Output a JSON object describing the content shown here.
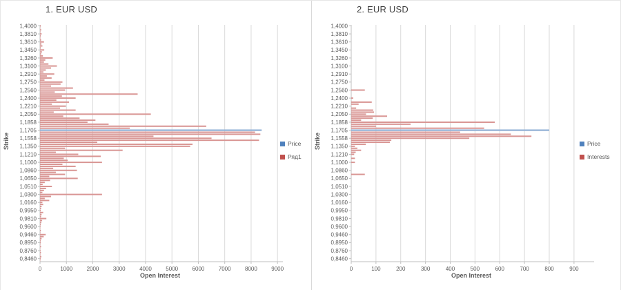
{
  "colors": {
    "interest_bar": "#D99694",
    "price_bar": "#95B3D7",
    "legend_red": "#C0504D",
    "legend_blue": "#4F81BD",
    "gridline": "#D9D9D9",
    "axis_line": "#BFBFBF",
    "tick_text": "#595959",
    "title_text": "#404040"
  },
  "chart_data": [
    {
      "type": "bar",
      "orientation": "horizontal",
      "title": "1. EUR USD",
      "xlabel": "Open Interest",
      "ylabel": "Strike",
      "xlim": [
        0,
        9100
      ],
      "x_ticks": [
        0,
        1000,
        2000,
        3000,
        4000,
        5000,
        6000,
        7000,
        8000,
        9000
      ],
      "grid": true,
      "legend_position": "right",
      "label_interval": 4,
      "y_tick_labels": [
        "1,4000",
        "1,3810",
        "1,3610",
        "1,3450",
        "1,3260",
        "1,3100",
        "1,2910",
        "1,2750",
        "1,2560",
        "1,2400",
        "1,2210",
        "1,2050",
        "1,1858",
        "1,1705",
        "1,1558",
        "1,1350",
        "1,1210",
        "1,1000",
        "1,0860",
        "1,0650",
        "1,0510",
        "1,0300",
        "1,0160",
        "0,9950",
        "0,9810",
        "0,9600",
        "0,9460",
        "0,8950",
        "0,8760",
        "0,8460"
      ],
      "series": [
        {
          "name": "Price",
          "color": "#95B3D7",
          "legend_color": "#4F81BD",
          "row_index": 52,
          "value": 8400
        },
        {
          "name": "Ряд1",
          "color": "#D99694",
          "legend_color": "#C0504D",
          "values": [
            30,
            12,
            45,
            18,
            60,
            25,
            15,
            40,
            150,
            55,
            90,
            30,
            160,
            75,
            45,
            110,
            480,
            200,
            150,
            320,
            640,
            420,
            220,
            130,
            540,
            260,
            440,
            170,
            850,
            780,
            420,
            1250,
            950,
            560,
            3700,
            830,
            1350,
            620,
            1100,
            450,
            980,
            760,
            1350,
            520,
            4200,
            880,
            1500,
            2100,
            1800,
            2600,
            6300,
            3400,
            0,
            8150,
            8350,
            4300,
            6500,
            8300,
            2170,
            5780,
            5690,
            950,
            3130,
            600,
            1450,
            2300,
            900,
            1050,
            2350,
            850,
            1350,
            500,
            1400,
            600,
            950,
            350,
            1430,
            380,
            180,
            100,
            450,
            230,
            150,
            90,
            2350,
            420,
            180,
            350,
            90,
            120,
            60,
            40,
            25,
            120,
            60,
            40,
            240,
            80,
            50,
            30,
            20,
            10,
            30,
            15,
            215,
            140,
            60,
            25,
            30,
            15,
            40,
            10,
            20,
            35,
            15,
            50,
            25,
            10
          ]
        }
      ]
    },
    {
      "type": "bar",
      "orientation": "horizontal",
      "title": "2. EUR USD",
      "xlabel": "Open Interest",
      "ylabel": "Strike",
      "xlim": [
        0,
        970
      ],
      "x_ticks": [
        0,
        100,
        200,
        300,
        400,
        500,
        600,
        700,
        800,
        900
      ],
      "grid": true,
      "legend_position": "right",
      "label_interval": 4,
      "y_tick_labels": [
        "1,4000",
        "1,3810",
        "1,3610",
        "1,3450",
        "1,3260",
        "1,3100",
        "1,2910",
        "1,2750",
        "1,2560",
        "1,2400",
        "1,2210",
        "1,2050",
        "1,1858",
        "1,1705",
        "1,1558",
        "1,1350",
        "1,1210",
        "1,1000",
        "1,0860",
        "1,0650",
        "1,0510",
        "1,0300",
        "1,0160",
        "0,9950",
        "0,9810",
        "0,9600",
        "0,9460",
        "0,8950",
        "0,8760",
        "0,8460"
      ],
      "series": [
        {
          "name": "Price",
          "color": "#95B3D7",
          "legend_color": "#4F81BD",
          "row_index": 52,
          "value": 800
        },
        {
          "name": "Interests",
          "color": "#D99694",
          "legend_color": "#C0504D",
          "values": [
            0,
            0,
            0,
            0,
            0,
            0,
            0,
            0,
            0,
            0,
            0,
            0,
            0,
            0,
            0,
            0,
            0,
            0,
            0,
            0,
            0,
            0,
            0,
            0,
            0,
            0,
            0,
            0,
            0,
            0,
            0,
            0,
            55,
            0,
            0,
            0,
            8,
            0,
            83,
            30,
            0,
            20,
            89,
            92,
            60,
            145,
            87,
            40,
            580,
            240,
            100,
            537,
            0,
            440,
            645,
            728,
            477,
            162,
            156,
            59,
            15,
            25,
            40,
            18,
            12,
            0,
            15,
            0,
            15,
            0,
            0,
            0,
            0,
            0,
            55,
            0,
            0,
            0,
            0,
            0,
            0,
            0,
            0,
            0,
            0,
            0,
            0,
            0,
            0,
            0,
            0,
            0,
            0,
            0,
            0,
            0,
            0,
            0,
            0,
            0,
            0,
            0,
            0,
            0,
            0,
            0,
            0,
            0,
            0,
            0,
            0,
            0,
            0,
            0,
            0,
            0,
            0,
            0
          ]
        }
      ]
    }
  ]
}
